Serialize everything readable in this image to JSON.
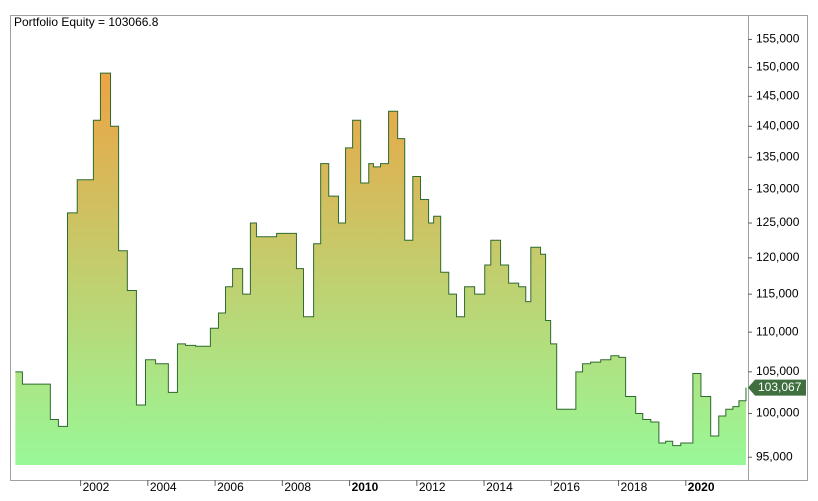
{
  "chart_data": {
    "type": "step-area",
    "title": "Portfolio Equity = 103066.8",
    "log_scale": true,
    "line_color": "#2e6b2e",
    "fill_top_color": "#f0a040",
    "fill_bottom_color": "#98f898",
    "xlim": [
      1999.9,
      2021.85
    ],
    "xticks": [
      2002,
      2004,
      2006,
      2008,
      2010,
      2012,
      2014,
      2016,
      2018,
      2020
    ],
    "xtick_bold": [
      2010,
      2020
    ],
    "ylim": [
      92500,
      159500
    ],
    "yticks": [
      {
        "value": 95000,
        "label": "95,000"
      },
      {
        "value": 100000,
        "label": "100,000"
      },
      {
        "value": 105000,
        "label": "105,000"
      },
      {
        "value": 110000,
        "label": "110,000"
      },
      {
        "value": 115000,
        "label": "115,000"
      },
      {
        "value": 120000,
        "label": "120,000"
      },
      {
        "value": 125000,
        "label": "125,000"
      },
      {
        "value": 130000,
        "label": "130,000"
      },
      {
        "value": 135000,
        "label": "135,000"
      },
      {
        "value": 140000,
        "label": "140,000"
      },
      {
        "value": 145000,
        "label": "145,000"
      },
      {
        "value": 150000,
        "label": "150,000"
      },
      {
        "value": 155000,
        "label": "155,000"
      }
    ],
    "x": [
      2000.06,
      2000.27,
      2001.1,
      2001.34,
      2001.61,
      2001.9,
      2002.38,
      2002.59,
      2002.89,
      2003.13,
      2003.39,
      2003.66,
      2003.93,
      2004.23,
      2004.61,
      2004.88,
      2005.12,
      2005.42,
      2005.86,
      2006.1,
      2006.31,
      2006.52,
      2006.82,
      2007.05,
      2007.23,
      2007.83,
      2008.42,
      2008.63,
      2008.93,
      2009.14,
      2009.38,
      2009.67,
      2009.88,
      2010.09,
      2010.33,
      2010.57,
      2010.71,
      2010.92,
      2011.16,
      2011.43,
      2011.64,
      2011.88,
      2012.11,
      2012.35,
      2012.5,
      2012.71,
      2012.95,
      2013.18,
      2013.42,
      2013.72,
      2014.02,
      2014.2,
      2014.49,
      2014.73,
      2015.03,
      2015.24,
      2015.39,
      2015.68,
      2015.83,
      2015.98,
      2016.16,
      2016.73,
      2016.93,
      2017.17,
      2017.47,
      2017.77,
      2018.01,
      2018.21,
      2018.51,
      2018.72,
      2018.96,
      2019.2,
      2019.4,
      2019.61,
      2019.85,
      2020.21,
      2020.45,
      2020.74,
      2020.98,
      2021.19,
      2021.4,
      2021.58,
      2021.79
    ],
    "values": [
      105000,
      103500,
      99300,
      98500,
      126500,
      131500,
      141000,
      149000,
      140000,
      121000,
      115500,
      101000,
      106500,
      106000,
      102500,
      108500,
      108300,
      108200,
      110500,
      112500,
      116000,
      118500,
      115000,
      125000,
      123000,
      123500,
      118500,
      112000,
      122000,
      134000,
      129000,
      125000,
      136500,
      141000,
      131000,
      134000,
      133500,
      134000,
      142500,
      138000,
      122500,
      132000,
      128500,
      125000,
      126000,
      118000,
      115000,
      112000,
      116000,
      115000,
      119000,
      122500,
      119000,
      116500,
      116000,
      114000,
      121500,
      120500,
      111500,
      108500,
      100500,
      105000,
      106000,
      106200,
      106500,
      107000,
      106800,
      102000,
      100000,
      99300,
      99000,
      96600,
      96800,
      96300,
      96600,
      104800,
      102000,
      97400,
      99700,
      100500,
      100800,
      101500,
      103066.8
    ],
    "end_label": {
      "value": 103066.8,
      "label": "103,067"
    }
  }
}
